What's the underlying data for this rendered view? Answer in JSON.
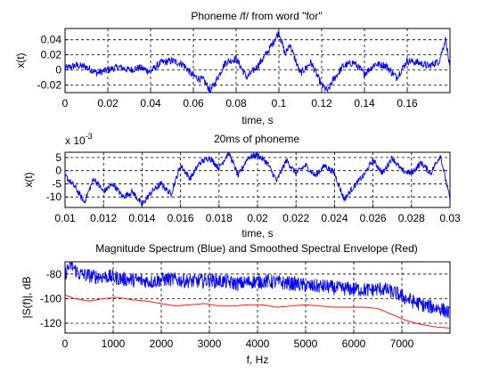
{
  "figure_bg": "#ffffff",
  "chart_data": [
    {
      "type": "line",
      "title": "Phoneme /f/ from word \"for\"",
      "xlabel": "time, s",
      "ylabel": "x(t)",
      "xlim": [
        0,
        0.18
      ],
      "ylim": [
        -0.03,
        0.055
      ],
      "xticks": [
        0,
        0.02,
        0.04,
        0.06,
        0.08,
        0.1,
        0.12,
        0.14,
        0.16
      ],
      "xticklabels": [
        "0",
        "0.02",
        "0.04",
        "0.06",
        "0.08",
        "0.1",
        "0.12",
        "0.14",
        "0.16"
      ],
      "yticks": [
        -0.02,
        0,
        0.02,
        0.04
      ],
      "yticklabels": [
        "-0.02",
        "0",
        "0.02",
        "0.04"
      ],
      "grid": true,
      "exponent_label": "",
      "series": [
        {
          "color": "#0000ff",
          "x": [
            0,
            0.005,
            0.01,
            0.015,
            0.02,
            0.025,
            0.03,
            0.035,
            0.04,
            0.045,
            0.05,
            0.055,
            0.06,
            0.065,
            0.068,
            0.07,
            0.075,
            0.08,
            0.085,
            0.09,
            0.095,
            0.1,
            0.103,
            0.105,
            0.11,
            0.115,
            0.12,
            0.123,
            0.125,
            0.13,
            0.135,
            0.14,
            0.145,
            0.15,
            0.155,
            0.16,
            0.165,
            0.17,
            0.175,
            0.178,
            0.18
          ],
          "y": [
            0.002,
            0.006,
            0.004,
            -0.004,
            0.0,
            0.004,
            0.0,
            0.003,
            -0.002,
            0.01,
            0.012,
            0.008,
            -0.008,
            -0.014,
            -0.028,
            -0.018,
            0.01,
            0.015,
            -0.01,
            0.005,
            0.025,
            0.05,
            0.02,
            0.035,
            -0.005,
            0.01,
            -0.02,
            -0.028,
            -0.015,
            0.005,
            0.01,
            -0.005,
            0.008,
            0.006,
            -0.01,
            0.012,
            0.01,
            0.005,
            0.012,
            0.042,
            0.0
          ],
          "noise": 0.005
        }
      ]
    },
    {
      "type": "line",
      "title": "20ms of phoneme",
      "xlabel": "time, s",
      "ylabel": "x(t)",
      "xlim": [
        0.01,
        0.03
      ],
      "ylim": [
        -14,
        7
      ],
      "xticks": [
        0.01,
        0.012,
        0.014,
        0.016,
        0.018,
        0.02,
        0.022,
        0.024,
        0.026,
        0.028,
        0.03
      ],
      "xticklabels": [
        "0.01",
        "0.012",
        "0.014",
        "0.016",
        "0.018",
        "0.02",
        "0.022",
        "0.024",
        "0.026",
        "0.028",
        "0.03"
      ],
      "yticks": [
        -10,
        -5,
        0,
        5
      ],
      "yticklabels": [
        "-10",
        "-5",
        "0",
        "5"
      ],
      "grid": true,
      "exponent_label": "x 10-3",
      "exponent_base": "x 10",
      "exponent_power": "-3",
      "series": [
        {
          "color": "#0000ff",
          "x": [
            0.01,
            0.0105,
            0.011,
            0.0115,
            0.012,
            0.0125,
            0.013,
            0.0135,
            0.014,
            0.0145,
            0.015,
            0.0155,
            0.016,
            0.0165,
            0.017,
            0.0175,
            0.018,
            0.0185,
            0.019,
            0.0195,
            0.02,
            0.0205,
            0.021,
            0.0215,
            0.022,
            0.0225,
            0.023,
            0.0235,
            0.024,
            0.0245,
            0.025,
            0.0255,
            0.026,
            0.0265,
            0.027,
            0.0275,
            0.028,
            0.0285,
            0.029,
            0.0295,
            0.03
          ],
          "y": [
            -2,
            -6,
            -12,
            -3,
            -8,
            -5,
            -10,
            -8,
            -13,
            -8,
            -5,
            -9,
            2,
            -3,
            3,
            5,
            1,
            7,
            -2,
            5,
            6,
            3,
            -4,
            4,
            -1,
            2,
            -2,
            2,
            -1,
            -11,
            -6,
            -2,
            4,
            -1,
            5,
            0,
            -1,
            3,
            -1,
            6,
            -11
          ],
          "noise": 1.2
        }
      ]
    },
    {
      "type": "line",
      "title": "Magnitude Spectrum (Blue) and Smoothed Spectral Envelope (Red)",
      "xlabel": "f, Hz",
      "ylabel": "|S(f)|, dB",
      "xlim": [
        0,
        8000
      ],
      "ylim": [
        -128,
        -70
      ],
      "xticks": [
        0,
        1000,
        2000,
        3000,
        4000,
        5000,
        6000,
        7000
      ],
      "xticklabels": [
        "0",
        "1000",
        "2000",
        "3000",
        "4000",
        "5000",
        "6000",
        "7000"
      ],
      "yticks": [
        -120,
        -100,
        -80
      ],
      "yticklabels": [
        "-120",
        "-100",
        "-80"
      ],
      "grid": true,
      "exponent_label": "",
      "series": [
        {
          "name": "Blue",
          "color": "#0000ff",
          "x": [
            0,
            100,
            300,
            600,
            900,
            1200,
            1500,
            1800,
            2100,
            2400,
            2700,
            3000,
            3300,
            3600,
            3900,
            4200,
            4500,
            4800,
            5100,
            5400,
            5700,
            6000,
            6300,
            6600,
            6900,
            7200,
            7500,
            7800,
            8000
          ],
          "y": [
            -80,
            -72,
            -80,
            -82,
            -82,
            -84,
            -85,
            -86,
            -84,
            -85,
            -86,
            -85,
            -86,
            -88,
            -86,
            -86,
            -87,
            -88,
            -90,
            -90,
            -92,
            -92,
            -93,
            -92,
            -96,
            -102,
            -106,
            -108,
            -112
          ],
          "noise": 6
        },
        {
          "name": "Red",
          "color": "#ff0000",
          "x": [
            0,
            200,
            500,
            800,
            1100,
            1400,
            1700,
            2000,
            2300,
            2600,
            2900,
            3200,
            3500,
            3800,
            4100,
            4400,
            4700,
            5000,
            5300,
            5600,
            5900,
            6200,
            6500,
            6800,
            7100,
            7400,
            7700,
            8000
          ],
          "y": [
            -97,
            -100,
            -102,
            -100,
            -99,
            -101,
            -102,
            -104,
            -106,
            -105,
            -104,
            -106,
            -106,
            -105,
            -105,
            -107,
            -106,
            -105,
            -106,
            -107,
            -107,
            -107,
            -108,
            -113,
            -118,
            -121,
            -123,
            -124
          ],
          "noise": 0
        }
      ]
    }
  ]
}
